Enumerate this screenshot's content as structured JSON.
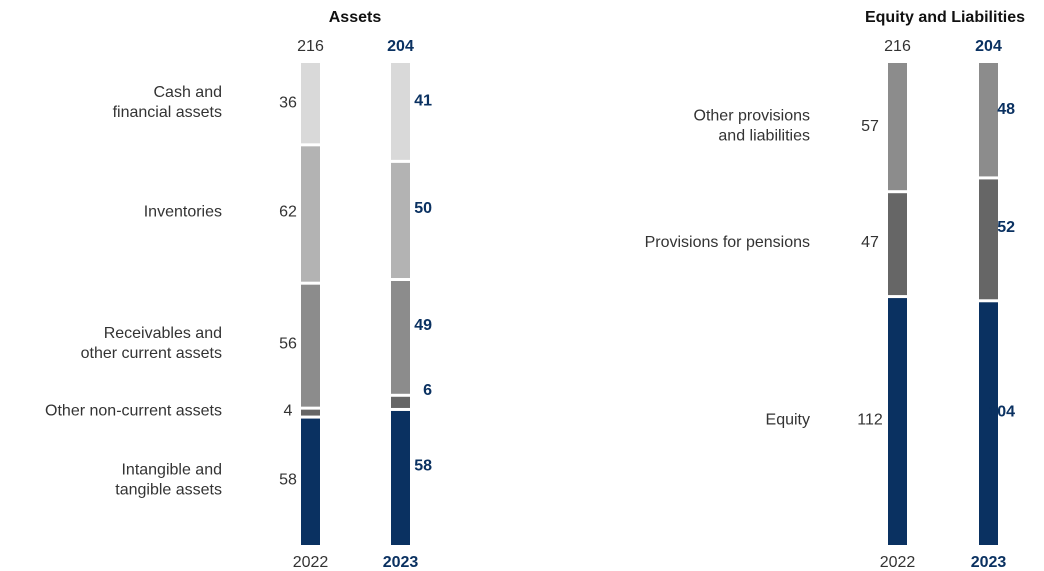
{
  "chart_data": [
    {
      "type": "stacked_bar",
      "title": "Assets",
      "categories": [
        "2022",
        "2023"
      ],
      "totals": [
        216,
        204
      ],
      "series": [
        {
          "name": "Intangible and\ntangible assets",
          "color": "#0a3161",
          "values": [
            58,
            58
          ]
        },
        {
          "name": "Other non-current assets",
          "color": "#666666",
          "values": [
            4,
            6
          ]
        },
        {
          "name": "Receivables and\nother current assets",
          "color": "#8c8c8c",
          "values": [
            56,
            49
          ]
        },
        {
          "name": "Inventories",
          "color": "#b3b3b3",
          "values": [
            62,
            50
          ]
        },
        {
          "name": "Cash and\nfinancial assets",
          "color": "#d9d9d9",
          "values": [
            36,
            41
          ]
        }
      ]
    },
    {
      "type": "stacked_bar",
      "title": "Equity and Liabilities",
      "categories": [
        "2022",
        "2023"
      ],
      "totals": [
        216,
        204
      ],
      "series": [
        {
          "name": "Equity",
          "color": "#0a3161",
          "values": [
            112,
            104
          ]
        },
        {
          "name": "Provisions for pensions",
          "color": "#666666",
          "values": [
            47,
            52
          ]
        },
        {
          "name": "Other provisions\nand liabilities",
          "color": "#8c8c8c",
          "values": [
            57,
            48
          ]
        }
      ]
    }
  ]
}
